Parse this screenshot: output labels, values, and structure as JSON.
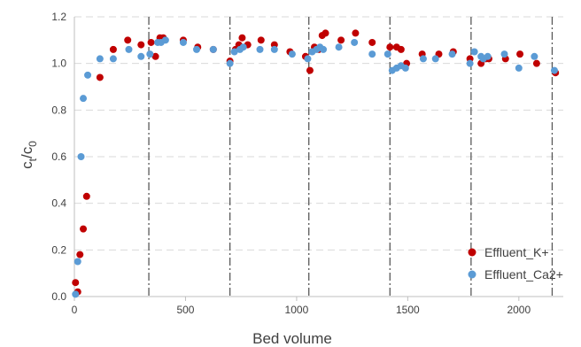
{
  "chart_data": {
    "type": "scatter",
    "xlabel": "Bed volume",
    "ylabel_main": "c",
    "ylabel_sub1": "t",
    "ylabel_sep": "/c",
    "ylabel_sub2": "0",
    "xlim": [
      0,
      2200
    ],
    "ylim": [
      0,
      1.2
    ],
    "x_ticks": [
      0,
      500,
      1000,
      1500,
      2000
    ],
    "y_ticks": [
      0.0,
      0.2,
      0.4,
      0.6,
      0.8,
      1.0,
      1.2
    ],
    "x_tick_labels": [
      "0",
      "500",
      "1000",
      "1500",
      "2000"
    ],
    "y_tick_labels": [
      "0.0",
      "0.2",
      "0.4",
      "0.6",
      "0.8",
      "1.0",
      "1.2"
    ],
    "grid": "horizontal dashed",
    "legend_position": "bottom-right",
    "vertical_reference_lines": [
      335,
      700,
      1055,
      1420,
      1785,
      2150
    ],
    "series": [
      {
        "name": "Effluent_K+",
        "color": "#c00000",
        "points": [
          [
            5,
            0.06
          ],
          [
            15,
            0.02
          ],
          [
            25,
            0.18
          ],
          [
            40,
            0.29
          ],
          [
            55,
            0.43
          ],
          [
            115,
            0.94
          ],
          [
            175,
            1.06
          ],
          [
            240,
            1.1
          ],
          [
            300,
            1.08
          ],
          [
            345,
            1.09
          ],
          [
            365,
            1.03
          ],
          [
            385,
            1.11
          ],
          [
            400,
            1.11
          ],
          [
            490,
            1.1
          ],
          [
            555,
            1.07
          ],
          [
            625,
            1.06
          ],
          [
            700,
            1.01
          ],
          [
            725,
            1.06
          ],
          [
            740,
            1.08
          ],
          [
            755,
            1.11
          ],
          [
            780,
            1.08
          ],
          [
            840,
            1.1
          ],
          [
            900,
            1.08
          ],
          [
            970,
            1.05
          ],
          [
            1040,
            1.03
          ],
          [
            1060,
            0.97
          ],
          [
            1080,
            1.07
          ],
          [
            1100,
            1.06
          ],
          [
            1115,
            1.12
          ],
          [
            1130,
            1.13
          ],
          [
            1200,
            1.1
          ],
          [
            1265,
            1.13
          ],
          [
            1340,
            1.09
          ],
          [
            1420,
            1.07
          ],
          [
            1450,
            1.07
          ],
          [
            1470,
            1.06
          ],
          [
            1495,
            1.0
          ],
          [
            1565,
            1.04
          ],
          [
            1640,
            1.04
          ],
          [
            1705,
            1.05
          ],
          [
            1780,
            1.02
          ],
          [
            1830,
            1.0
          ],
          [
            1850,
            1.02
          ],
          [
            1865,
            1.02
          ],
          [
            1940,
            1.02
          ],
          [
            2005,
            1.04
          ],
          [
            2080,
            1.0
          ],
          [
            2165,
            0.96
          ]
        ]
      },
      {
        "name": "Effluent_Ca2+",
        "color": "#5b9bd5",
        "points": [
          [
            5,
            0.01
          ],
          [
            15,
            0.15
          ],
          [
            30,
            0.6
          ],
          [
            40,
            0.85
          ],
          [
            60,
            0.95
          ],
          [
            115,
            1.02
          ],
          [
            175,
            1.02
          ],
          [
            245,
            1.06
          ],
          [
            300,
            1.03
          ],
          [
            340,
            1.04
          ],
          [
            375,
            1.09
          ],
          [
            390,
            1.09
          ],
          [
            410,
            1.1
          ],
          [
            490,
            1.09
          ],
          [
            550,
            1.06
          ],
          [
            625,
            1.06
          ],
          [
            700,
            1.0
          ],
          [
            720,
            1.05
          ],
          [
            745,
            1.06
          ],
          [
            760,
            1.07
          ],
          [
            835,
            1.06
          ],
          [
            900,
            1.06
          ],
          [
            980,
            1.04
          ],
          [
            1050,
            1.02
          ],
          [
            1070,
            1.05
          ],
          [
            1090,
            1.06
          ],
          [
            1105,
            1.07
          ],
          [
            1120,
            1.06
          ],
          [
            1190,
            1.07
          ],
          [
            1260,
            1.09
          ],
          [
            1340,
            1.04
          ],
          [
            1410,
            1.04
          ],
          [
            1430,
            0.97
          ],
          [
            1450,
            0.98
          ],
          [
            1470,
            0.99
          ],
          [
            1490,
            0.98
          ],
          [
            1570,
            1.02
          ],
          [
            1625,
            1.02
          ],
          [
            1700,
            1.04
          ],
          [
            1780,
            1.0
          ],
          [
            1800,
            1.05
          ],
          [
            1830,
            1.03
          ],
          [
            1840,
            1.02
          ],
          [
            1860,
            1.03
          ],
          [
            1935,
            1.04
          ],
          [
            2000,
            0.98
          ],
          [
            2070,
            1.03
          ],
          [
            2160,
            0.97
          ]
        ]
      }
    ]
  }
}
